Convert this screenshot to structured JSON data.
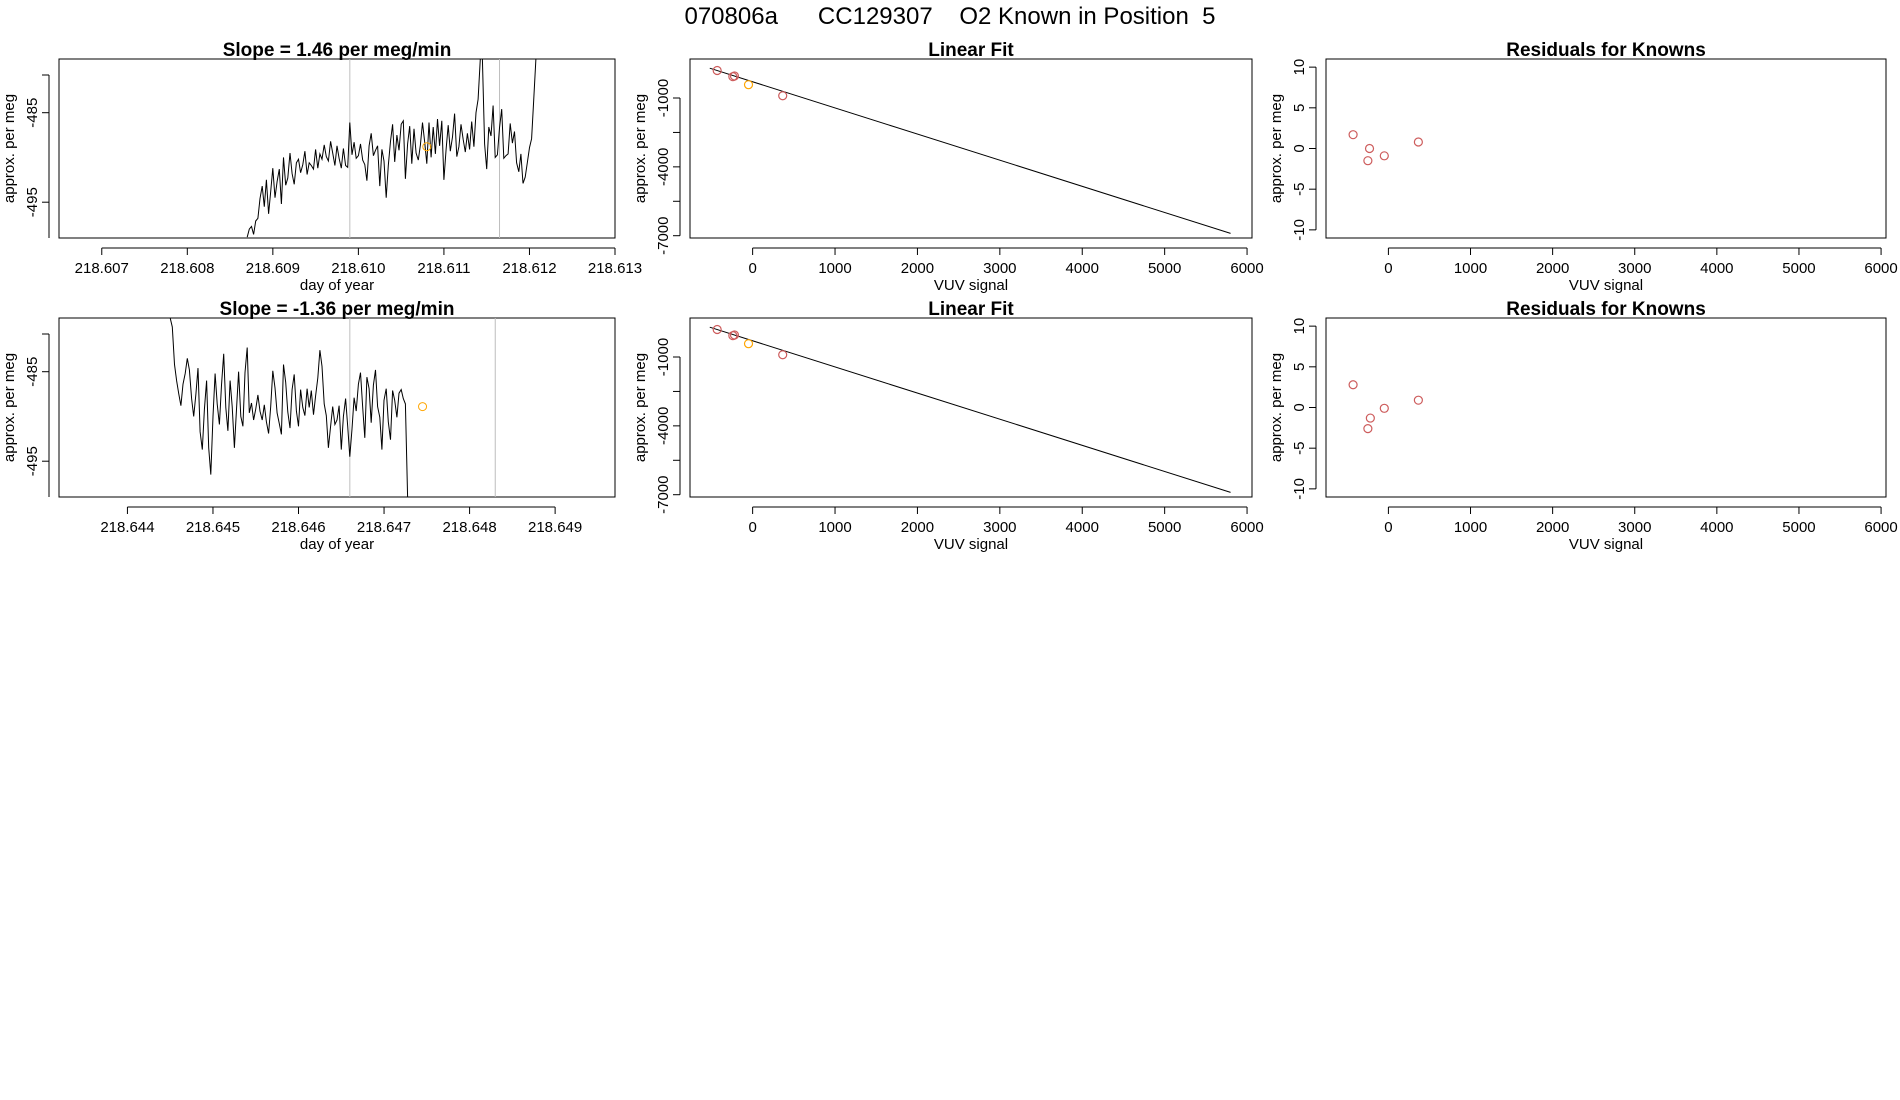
{
  "page": {
    "title": "070806a      CC129307    O2 Known in Position  5"
  },
  "colors": {
    "line": "#000000",
    "marker": "#cd5c5c",
    "highlight": "#ffa500",
    "marker_line": "#bebebe"
  },
  "chart_data": [
    {
      "id": "ts1",
      "type": "line",
      "title": "Slope =  1.46  per meg/min",
      "xlabel": "day of year",
      "ylabel": "approx. per meg",
      "xlim": [
        218.6065,
        218.613
      ],
      "ylim": [
        -499,
        -479
      ],
      "xticks": [
        218.607,
        218.608,
        218.609,
        218.61,
        218.611,
        218.612,
        218.613
      ],
      "xtick_labels": [
        "218.607",
        "218.608",
        "218.609",
        "218.610",
        "218.611",
        "218.612",
        "218.613"
      ],
      "yticks": [
        -495,
        -485
      ],
      "ytick_labels": [
        "-495",
        "-485"
      ],
      "x_start": 218.6087,
      "x_step": 2.5e-05,
      "values": [
        -498.9,
        -498.0,
        -497.7,
        -498.6,
        -497.1,
        -496.8,
        -494.6,
        -493.2,
        -495.5,
        -492.5,
        -496.3,
        -493.8,
        -491.2,
        -494.5,
        -492.7,
        -491.3,
        -495.2,
        -490.0,
        -493.1,
        -492.3,
        -489.5,
        -491.8,
        -493.0,
        -490.6,
        -490.2,
        -491.7,
        -490.8,
        -489.3,
        -491.9,
        -490.6,
        -490.9,
        -491.3,
        -489.1,
        -491.2,
        -489.6,
        -490.2,
        -488.6,
        -489.9,
        -490.4,
        -488.2,
        -489.5,
        -490.9,
        -488.7,
        -490.1,
        -491.2,
        -489.0,
        -490.9,
        -491.1,
        -486.1,
        -489.7,
        -488.3,
        -490.1,
        -489.8,
        -488.5,
        -490.3,
        -490.8,
        -492.6,
        -488.7,
        -487.3,
        -489.8,
        -489.2,
        -488.7,
        -493.2,
        -489.1,
        -490.4,
        -494.5,
        -490.9,
        -488.2,
        -486.3,
        -490.5,
        -487.5,
        -489.2,
        -486.3,
        -485.9,
        -492.4,
        -488.5,
        -486.5,
        -490.7,
        -486.8,
        -489.5,
        -490.3,
        -488.6,
        -486.1,
        -488.3,
        -490.7,
        -486.1,
        -490.0,
        -486.6,
        -489.6,
        -485.7,
        -488.7,
        -485.9,
        -492.5,
        -489.1,
        -486.4,
        -489.3,
        -487.7,
        -485.1,
        -489.9,
        -488.8,
        -486.3,
        -488.0,
        -489.4,
        -487.3,
        -489.1,
        -486.0,
        -488.8,
        -485.0,
        -483.5,
        -479.0,
        -479.0,
        -488.5,
        -491.3,
        -486.6,
        -487.6,
        -484.2,
        -490.0,
        -489.7,
        -486.7,
        -484.6,
        -490.1,
        -489.8,
        -489.6,
        -486.2,
        -488.4,
        -487.1,
        -490.6,
        -491.6,
        -489.6,
        -492.9,
        -492.2,
        -490.6,
        -488.9,
        -487.9,
        -483.6,
        -479.0
      ],
      "vlines": [
        218.6099,
        218.61165
      ],
      "highlight": {
        "x": 218.6108,
        "y": -488.8
      }
    },
    {
      "id": "fit1",
      "type": "scatter",
      "title": "Linear Fit",
      "xlabel": "VUV signal",
      "ylabel": "approx. per meg",
      "xlim": [
        -760,
        6060
      ],
      "ylim": [
        -7100,
        700
      ],
      "xticks": [
        0,
        1000,
        2000,
        3000,
        4000,
        5000,
        6000
      ],
      "xtick_labels": [
        "0",
        "1000",
        "2000",
        "3000",
        "4000",
        "5000",
        "6000"
      ],
      "yticks": [
        -7000,
        -4000,
        -1000
      ],
      "ytick_labels": [
        "-7000",
        "-4000",
        "-1000"
      ],
      "ymid_ticks": [
        -5500,
        -2500
      ],
      "fit_line": {
        "x": [
          -520,
          5800
        ],
        "y": [
          300,
          -6900
        ]
      },
      "points": [
        {
          "x": -430,
          "y": 200
        },
        {
          "x": -240,
          "y": -70
        },
        {
          "x": -220,
          "y": -40
        },
        {
          "x": 365,
          "y": -900
        }
      ],
      "highlight_points": [
        {
          "x": -50,
          "y": -420
        }
      ]
    },
    {
      "id": "res1",
      "type": "scatter",
      "title": "Residuals for Knowns",
      "xlabel": "VUV signal",
      "ylabel": "approx. per meg",
      "xlim": [
        -760,
        6060
      ],
      "ylim": [
        -11,
        11
      ],
      "xticks": [
        0,
        1000,
        2000,
        3000,
        4000,
        5000,
        6000
      ],
      "xtick_labels": [
        "0",
        "1000",
        "2000",
        "3000",
        "4000",
        "5000",
        "6000"
      ],
      "yticks": [
        -10,
        -5,
        0,
        5,
        10
      ],
      "ytick_labels": [
        "-10",
        "-5",
        "0",
        "5",
        "10"
      ],
      "points": [
        {
          "x": -430,
          "y": 1.7
        },
        {
          "x": -230,
          "y": 0.0
        },
        {
          "x": -250,
          "y": -1.5
        },
        {
          "x": -50,
          "y": -0.9
        },
        {
          "x": 365,
          "y": 0.8
        }
      ]
    },
    {
      "id": "ts2",
      "type": "line",
      "title": "Slope =  -1.36  per meg/min",
      "xlabel": "day of year",
      "ylabel": "approx. per meg",
      "xlim": [
        218.6432,
        218.6497
      ],
      "ylim": [
        -499,
        -479
      ],
      "xticks": [
        218.644,
        218.645,
        218.646,
        218.647,
        218.648,
        218.649
      ],
      "xtick_labels": [
        "218.644",
        "218.645",
        "218.646",
        "218.647",
        "218.648",
        "218.649"
      ],
      "yticks": [
        -495,
        -485
      ],
      "ytick_labels": [
        "-495",
        "-485"
      ],
      "x_start": 218.6445,
      "x_step": 2.5e-05,
      "values": [
        -479.0,
        -480.0,
        -484.2,
        -486.0,
        -487.5,
        -488.8,
        -486.4,
        -485.2,
        -483.5,
        -484.8,
        -488.0,
        -490.0,
        -487.5,
        -484.6,
        -491.7,
        -493.7,
        -489.2,
        -486.0,
        -493.5,
        -496.5,
        -490.0,
        -485.2,
        -488.6,
        -490.9,
        -486.5,
        -483.0,
        -489.0,
        -491.6,
        -486.0,
        -488.9,
        -493.5,
        -489.2,
        -485.0,
        -490.0,
        -491.1,
        -485.1,
        -482.3,
        -489.6,
        -488.5,
        -490.4,
        -489.2,
        -487.6,
        -489.4,
        -490.4,
        -488.7,
        -490.6,
        -491.9,
        -488.9,
        -484.9,
        -486.8,
        -489.6,
        -490.8,
        -492.0,
        -484.2,
        -486.2,
        -489.5,
        -491.3,
        -487.0,
        -485.3,
        -489.4,
        -491.1,
        -487.0,
        -489.0,
        -489.9,
        -486.9,
        -489.0,
        -487.1,
        -489.8,
        -487.7,
        -485.7,
        -482.6,
        -484.4,
        -488.6,
        -489.9,
        -493.5,
        -491.1,
        -488.9,
        -490.9,
        -490.4,
        -488.8,
        -493.7,
        -490.0,
        -488.0,
        -491.1,
        -494.5,
        -491.4,
        -487.9,
        -489.4,
        -486.4,
        -485.1,
        -489.0,
        -492.4,
        -485.6,
        -486.9,
        -490.7,
        -486.5,
        -484.8,
        -488.9,
        -490.1,
        -493.7,
        -488.2,
        -486.9,
        -490.6,
        -492.6,
        -487.1,
        -488.2,
        -490.1,
        -487.4,
        -487.0,
        -488.0,
        -488.6,
        -499.0
      ],
      "vlines": [
        218.6466,
        218.6483
      ],
      "highlight": {
        "x": 218.64745,
        "y": -488.9
      }
    },
    {
      "id": "fit2",
      "type": "scatter",
      "title": "Linear Fit",
      "xlabel": "VUV signal",
      "ylabel": "approx. per meg",
      "xlim": [
        -760,
        6060
      ],
      "ylim": [
        -7100,
        700
      ],
      "xticks": [
        0,
        1000,
        2000,
        3000,
        4000,
        5000,
        6000
      ],
      "xtick_labels": [
        "0",
        "1000",
        "2000",
        "3000",
        "4000",
        "5000",
        "6000"
      ],
      "yticks": [
        -7000,
        -4000,
        -1000
      ],
      "ytick_labels": [
        "-7000",
        "-4000",
        "-1000"
      ],
      "ymid_ticks": [
        -5500,
        -2500
      ],
      "fit_line": {
        "x": [
          -520,
          5800
        ],
        "y": [
          300,
          -6900
        ]
      },
      "points": [
        {
          "x": -430,
          "y": 200
        },
        {
          "x": -240,
          "y": -70
        },
        {
          "x": -220,
          "y": -40
        },
        {
          "x": 365,
          "y": -900
        }
      ],
      "highlight_points": [
        {
          "x": -50,
          "y": -420
        }
      ]
    },
    {
      "id": "res2",
      "type": "scatter",
      "title": "Residuals for Knowns",
      "xlabel": "VUV signal",
      "ylabel": "approx. per meg",
      "xlim": [
        -760,
        6060
      ],
      "ylim": [
        -11,
        11
      ],
      "xticks": [
        0,
        1000,
        2000,
        3000,
        4000,
        5000,
        6000
      ],
      "xtick_labels": [
        "0",
        "1000",
        "2000",
        "3000",
        "4000",
        "5000",
        "6000"
      ],
      "yticks": [
        -10,
        -5,
        0,
        5,
        10
      ],
      "ytick_labels": [
        "-10",
        "-5",
        "0",
        "5",
        "10"
      ],
      "points": [
        {
          "x": -430,
          "y": 2.8
        },
        {
          "x": -220,
          "y": -1.3
        },
        {
          "x": -250,
          "y": -2.6
        },
        {
          "x": -50,
          "y": -0.1
        },
        {
          "x": 365,
          "y": 0.9
        }
      ]
    }
  ]
}
